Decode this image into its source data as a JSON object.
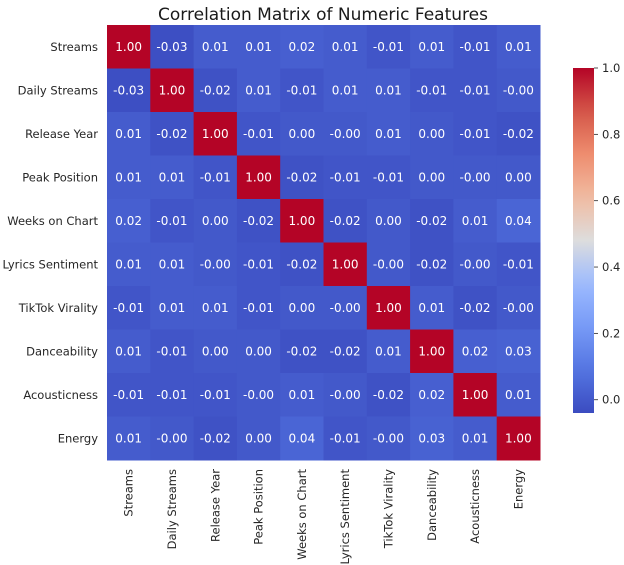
{
  "chart_data": {
    "type": "heatmap",
    "title": "Correlation Matrix of Numeric Features",
    "labels": [
      "Streams",
      "Daily Streams",
      "Release Year",
      "Peak Position",
      "Weeks on Chart",
      "Lyrics Sentiment",
      "TikTok Virality",
      "Danceability",
      "Acousticness",
      "Energy"
    ],
    "matrix": [
      [
        1.0,
        -0.03,
        0.01,
        0.01,
        0.02,
        0.01,
        -0.01,
        0.01,
        -0.01,
        0.01
      ],
      [
        -0.03,
        1.0,
        -0.02,
        0.01,
        -0.01,
        0.01,
        0.01,
        -0.01,
        -0.01,
        -0.0
      ],
      [
        0.01,
        -0.02,
        1.0,
        -0.01,
        0.0,
        -0.0,
        0.01,
        0.0,
        -0.01,
        -0.02
      ],
      [
        0.01,
        0.01,
        -0.01,
        1.0,
        -0.02,
        -0.01,
        -0.01,
        0.0,
        -0.0,
        0.0
      ],
      [
        0.02,
        -0.01,
        0.0,
        -0.02,
        1.0,
        -0.02,
        0.0,
        -0.02,
        0.01,
        0.04
      ],
      [
        0.01,
        0.01,
        -0.0,
        -0.01,
        -0.02,
        1.0,
        -0.0,
        -0.02,
        -0.0,
        -0.01
      ],
      [
        -0.01,
        0.01,
        0.01,
        -0.01,
        0.0,
        -0.0,
        1.0,
        0.01,
        -0.02,
        -0.0
      ],
      [
        0.01,
        -0.01,
        0.0,
        0.0,
        -0.02,
        -0.02,
        0.01,
        1.0,
        0.02,
        0.03
      ],
      [
        -0.01,
        -0.01,
        -0.01,
        -0.0,
        0.01,
        -0.0,
        -0.02,
        0.02,
        1.0,
        0.01
      ],
      [
        0.01,
        -0.0,
        -0.02,
        0.0,
        0.04,
        -0.01,
        -0.0,
        0.03,
        0.01,
        1.0
      ]
    ],
    "cell_text": [
      [
        "1.00",
        "-0.03",
        "0.01",
        "0.01",
        "0.02",
        "0.01",
        "-0.01",
        "0.01",
        "-0.01",
        "0.01"
      ],
      [
        "-0.03",
        "1.00",
        "-0.02",
        "0.01",
        "-0.01",
        "0.01",
        "0.01",
        "-0.01",
        "-0.01",
        "-0.00"
      ],
      [
        "0.01",
        "-0.02",
        "1.00",
        "-0.01",
        "0.00",
        "-0.00",
        "0.01",
        "0.00",
        "-0.01",
        "-0.02"
      ],
      [
        "0.01",
        "0.01",
        "-0.01",
        "1.00",
        "-0.02",
        "-0.01",
        "-0.01",
        "0.00",
        "-0.00",
        "0.00"
      ],
      [
        "0.02",
        "-0.01",
        "0.00",
        "-0.02",
        "1.00",
        "-0.02",
        "0.00",
        "-0.02",
        "0.01",
        "0.04"
      ],
      [
        "0.01",
        "0.01",
        "-0.00",
        "-0.01",
        "-0.02",
        "1.00",
        "-0.00",
        "-0.02",
        "-0.00",
        "-0.01"
      ],
      [
        "-0.01",
        "0.01",
        "0.01",
        "-0.01",
        "0.00",
        "-0.00",
        "1.00",
        "0.01",
        "-0.02",
        "-0.00"
      ],
      [
        "0.01",
        "-0.01",
        "0.00",
        "0.00",
        "-0.02",
        "-0.02",
        "0.01",
        "1.00",
        "0.02",
        "0.03"
      ],
      [
        "-0.01",
        "-0.01",
        "-0.01",
        "-0.00",
        "0.01",
        "-0.00",
        "-0.02",
        "0.02",
        "1.00",
        "0.01"
      ],
      [
        "0.01",
        "-0.00",
        "-0.02",
        "0.00",
        "0.04",
        "-0.01",
        "-0.00",
        "0.03",
        "0.01",
        "1.00"
      ]
    ],
    "colormap": "coolwarm",
    "value_range": [
      -0.04,
      1.0
    ],
    "colorbar_ticks": [
      "1.0",
      "0.8",
      "0.6",
      "0.4",
      "0.2",
      "0.0"
    ],
    "colorbar_tick_values": [
      1.0,
      0.8,
      0.6,
      0.4,
      0.2,
      0.0
    ],
    "grid": false,
    "colors": {
      "low": "#3b4cc0",
      "mid": "#dddddd",
      "high": "#b40426"
    }
  }
}
